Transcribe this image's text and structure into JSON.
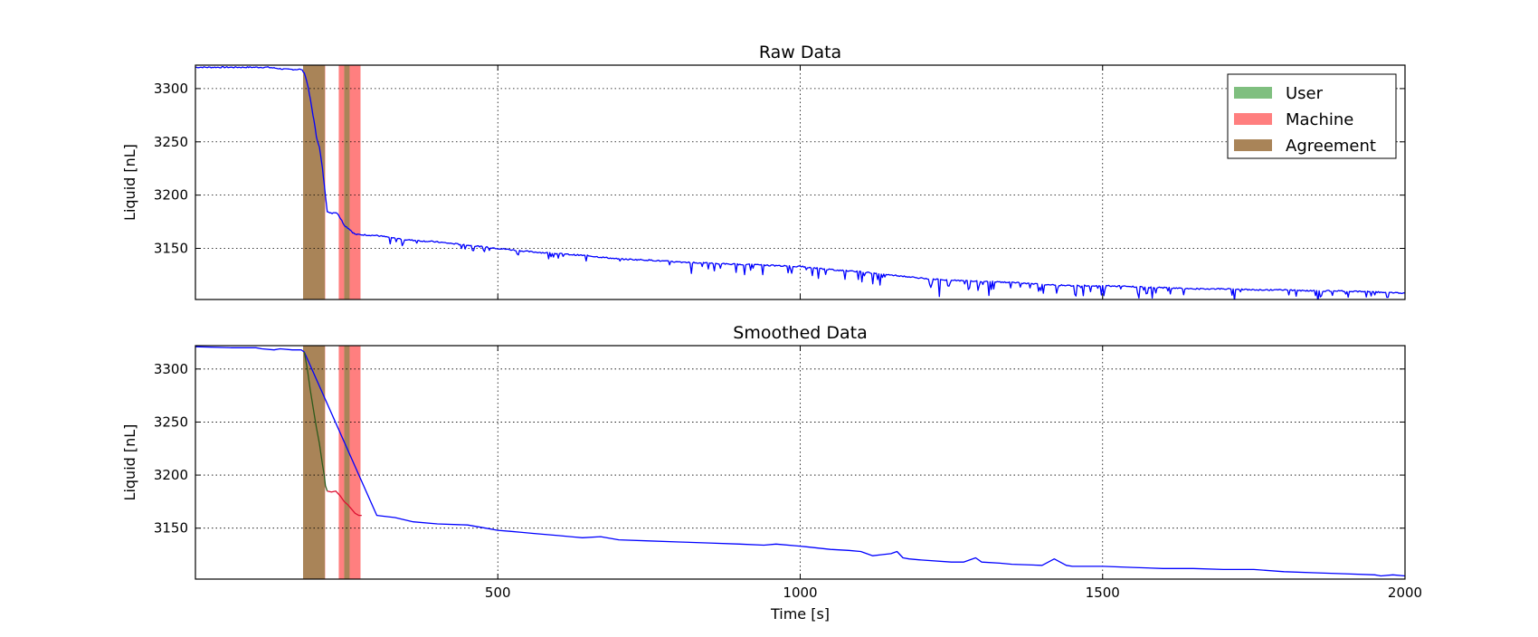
{
  "chart_data": [
    {
      "type": "line",
      "title": "Raw Data",
      "ylabel": "Liquid [nL]",
      "xlabel": "",
      "xlim": [
        0,
        2000
      ],
      "ylim": [
        3102,
        3322
      ],
      "xticks": [
        500,
        1000,
        1500,
        2000
      ],
      "xtick_labels_shown": false,
      "yticks": [
        3150,
        3200,
        3250,
        3300
      ],
      "grid": true,
      "legend": {
        "placement": "top-right",
        "entries": [
          {
            "label": "User",
            "color": "#7fbf7f"
          },
          {
            "label": "Machine",
            "color": "#ff7f7f"
          },
          {
            "label": "Agreement",
            "color": "#a98458"
          }
        ]
      },
      "regions": [
        {
          "kind": "agreement",
          "x": [
            178,
            213
          ]
        },
        {
          "kind": "machine",
          "x": [
            213,
            214
          ]
        },
        {
          "kind": "machine",
          "x": [
            213,
            214
          ]
        },
        {
          "kind": "agreement",
          "x": [
            210,
            214
          ]
        },
        {
          "kind": "machine",
          "x": [
            237,
            246
          ]
        },
        {
          "kind": "agreement",
          "x": [
            246,
            255
          ]
        },
        {
          "kind": "machine",
          "x": [
            255,
            273
          ]
        }
      ],
      "series": [
        {
          "color": "#0000ff",
          "noisy": true,
          "x": [
            0,
            120,
            150,
            175,
            180,
            185,
            190,
            193,
            196,
            200,
            205,
            210,
            213,
            215,
            218,
            222,
            226,
            230,
            235,
            240,
            246,
            250,
            255,
            260,
            265,
            270,
            300,
            350,
            400,
            450,
            500,
            550,
            600,
            650,
            700,
            750,
            800,
            850,
            900,
            950,
            1000,
            1050,
            1100,
            1150,
            1200,
            1250,
            1300,
            1350,
            1400,
            1450,
            1500,
            1550,
            1600,
            1650,
            1700,
            1750,
            1800,
            1850,
            1900,
            1950,
            2000
          ],
          "y": [
            3320,
            3320,
            3318,
            3318,
            3315,
            3305,
            3290,
            3280,
            3270,
            3255,
            3245,
            3225,
            3210,
            3200,
            3185,
            3183,
            3183,
            3184,
            3183,
            3178,
            3172,
            3170,
            3168,
            3165,
            3163,
            3163,
            3162,
            3158,
            3156,
            3153,
            3150,
            3147,
            3145,
            3143,
            3140,
            3139,
            3137,
            3136,
            3135,
            3134,
            3133,
            3130,
            3128,
            3125,
            3122,
            3120,
            3119,
            3118,
            3116,
            3115,
            3115,
            3114,
            3113,
            3112,
            3112,
            3111,
            3111,
            3110,
            3110,
            3109,
            3108
          ]
        }
      ]
    },
    {
      "type": "line",
      "title": "Smoothed Data",
      "ylabel": "Liquid [nL]",
      "xlabel": "Time [s]",
      "xlim": [
        0,
        2000
      ],
      "ylim": [
        3102,
        3322
      ],
      "xticks": [
        500,
        1000,
        1500,
        2000
      ],
      "xtick_labels_shown": true,
      "yticks": [
        3150,
        3200,
        3250,
        3300
      ],
      "grid": true,
      "regions": [
        {
          "kind": "agreement",
          "x": [
            178,
            213
          ]
        },
        {
          "kind": "machine",
          "x": [
            213,
            214
          ]
        },
        {
          "kind": "agreement",
          "x": [
            210,
            214
          ]
        },
        {
          "kind": "machine",
          "x": [
            237,
            246
          ]
        },
        {
          "kind": "agreement",
          "x": [
            246,
            255
          ]
        },
        {
          "kind": "machine",
          "x": [
            255,
            273
          ]
        }
      ],
      "series": [
        {
          "color": "#0000ff",
          "noisy": false,
          "x": [
            0,
            60,
            100,
            110,
            130,
            140,
            160,
            175,
            180,
            300,
            330,
            360,
            400,
            450,
            480,
            500,
            520,
            540,
            560,
            600,
            640,
            670,
            700,
            750,
            800,
            850,
            900,
            940,
            960,
            1000,
            1050,
            1080,
            1100,
            1120,
            1135,
            1150,
            1160,
            1170,
            1180,
            1200,
            1250,
            1270,
            1290,
            1300,
            1330,
            1350,
            1400,
            1420,
            1440,
            1450,
            1500,
            1550,
            1600,
            1650,
            1700,
            1750,
            1800,
            1850,
            1900,
            1950,
            1960,
            1980,
            2000
          ],
          "y": [
            3321,
            3320,
            3320,
            3319,
            3318,
            3319,
            3318,
            3318,
            3316,
            3162,
            3160,
            3156,
            3154,
            3153,
            3150,
            3148,
            3147,
            3146,
            3145,
            3143,
            3141,
            3142,
            3139,
            3138,
            3137,
            3136,
            3135,
            3134,
            3135,
            3133,
            3130,
            3129,
            3128,
            3124,
            3125,
            3126,
            3128,
            3122,
            3121,
            3120,
            3118,
            3118,
            3122,
            3118,
            3117,
            3116,
            3115,
            3121,
            3115,
            3114,
            3114,
            3113,
            3112,
            3112,
            3111,
            3111,
            3109,
            3108,
            3107,
            3106,
            3105,
            3106,
            3105
          ]
        },
        {
          "color": "#2b5a1b",
          "noisy": false,
          "x": [
            180,
            185,
            190,
            195,
            200,
            205,
            210,
            213,
            215,
            218
          ],
          "y": [
            3316,
            3300,
            3280,
            3262,
            3245,
            3230,
            3210,
            3200,
            3190,
            3185
          ]
        },
        {
          "color": "#dd1133",
          "noisy": false,
          "x": [
            218,
            225,
            232,
            240,
            246,
            252,
            258,
            264,
            270,
            275
          ],
          "y": [
            3185,
            3184,
            3185,
            3180,
            3175,
            3172,
            3168,
            3164,
            3162,
            3162
          ]
        }
      ]
    }
  ]
}
